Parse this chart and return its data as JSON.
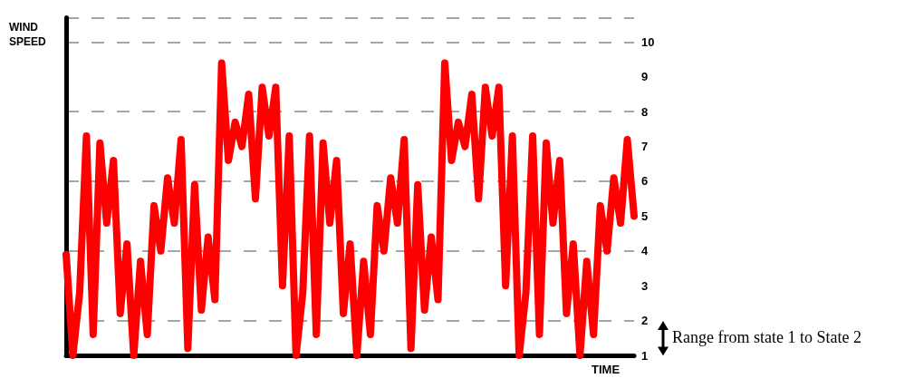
{
  "chart_data": {
    "type": "line",
    "xlabel": "TIME",
    "ylabel": "WIND SPEED",
    "categories": [
      null,
      null,
      null,
      null,
      null,
      null,
      null,
      null,
      null,
      null,
      null,
      null,
      null,
      null,
      null,
      null,
      null,
      null,
      null,
      null,
      null,
      null,
      null,
      null,
      null,
      null,
      null,
      null,
      null,
      null,
      null,
      null,
      null,
      null,
      null,
      null,
      null,
      null,
      null,
      null,
      null,
      null,
      null,
      null,
      null,
      null,
      null,
      null,
      null,
      null,
      null,
      null,
      null,
      null,
      null,
      null,
      null,
      null,
      null,
      null,
      null,
      null,
      null,
      null,
      null,
      null,
      null,
      null,
      null,
      null,
      null,
      null,
      null,
      null,
      null,
      null,
      null,
      null,
      null,
      null,
      null,
      null,
      null,
      null,
      null
    ],
    "series": [
      {
        "color": "#ff0000",
        "values": [
          3.9,
          1.0,
          2.8,
          7.3,
          1.6,
          7.1,
          4.8,
          6.6,
          2.2,
          4.2,
          1.0,
          3.7,
          1.6,
          5.3,
          4.0,
          6.1,
          4.8,
          7.2,
          1.2,
          5.9,
          2.3,
          4.4,
          2.6,
          9.4,
          6.6,
          7.7,
          7.0,
          8.5,
          5.5,
          8.7,
          7.3,
          8.7,
          3.0,
          7.3,
          1.0,
          2.8,
          7.3,
          1.6,
          7.1,
          4.8,
          6.6,
          2.2,
          4.2,
          1.0,
          3.7,
          1.6,
          5.3,
          4.0,
          6.1,
          4.8,
          7.2,
          1.2,
          5.9,
          2.3,
          4.4,
          2.6,
          9.4,
          6.6,
          7.7,
          7.0,
          8.5,
          5.5,
          8.7,
          7.3,
          8.7,
          3.0,
          7.3,
          1.0,
          2.8,
          7.3,
          1.6,
          7.1,
          4.8,
          6.6,
          2.2,
          4.2,
          1.0,
          3.7,
          1.6,
          5.3,
          4.0,
          6.1,
          4.8,
          7.2,
          5.0
        ]
      }
    ],
    "ylim": [
      1,
      10.7
    ],
    "yticks": [
      1,
      2,
      3,
      4,
      5,
      6,
      7,
      8,
      9,
      10
    ],
    "tick_labels": "y",
    "grid": "y",
    "line_style": "solid",
    "annotations": [
      "Range from state 1 to State 2"
    ]
  }
}
